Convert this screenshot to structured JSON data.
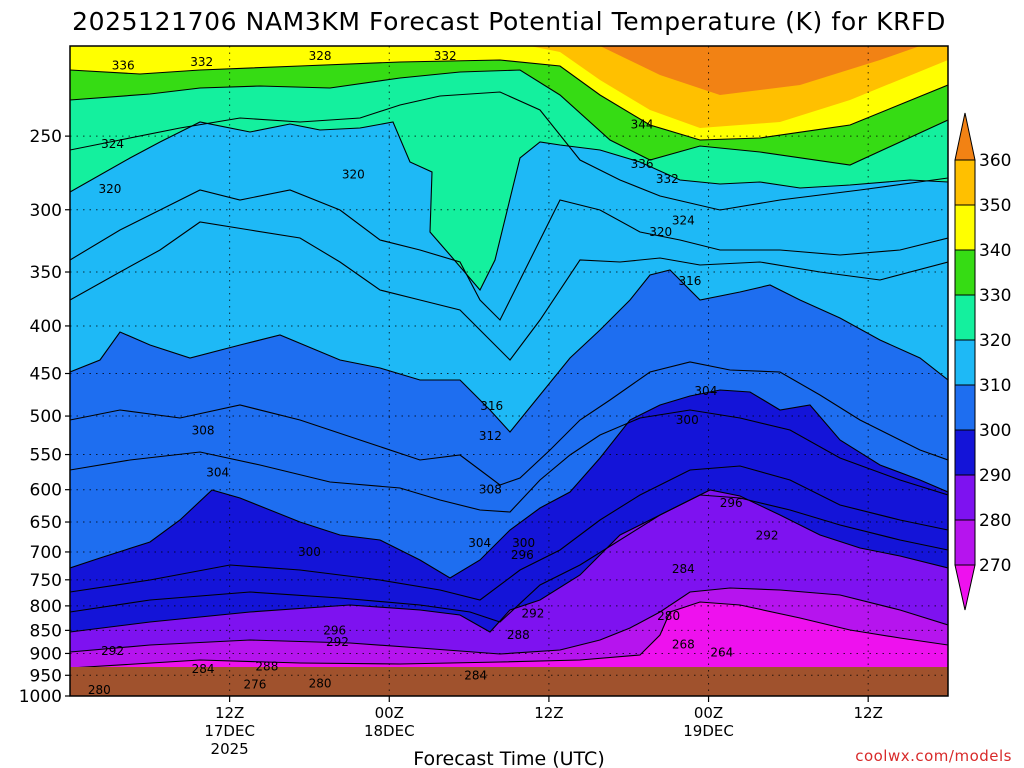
{
  "chart_data": {
    "type": "heatmap",
    "title": "2025121706 NAM3KM Forecast Potential Temperature (K) for KRFD",
    "xlabel": "Forecast Time (UTC)",
    "ylabel": "",
    "y_axis_scale": "log",
    "y_ticks": [
      "250",
      "300",
      "350",
      "400",
      "450",
      "500",
      "550",
      "600",
      "650",
      "700",
      "750",
      "800",
      "850",
      "900",
      "950",
      "1000"
    ],
    "y_range": [
      200,
      1000
    ],
    "x_ticks": [
      {
        "label": "12Z",
        "date": "17DEC",
        "year": "2025",
        "hour": 12
      },
      {
        "label": "00Z",
        "date": "18DEC",
        "year": "",
        "hour": 24
      },
      {
        "label": "12Z",
        "date": "",
        "year": "",
        "hour": 36
      },
      {
        "label": "00Z",
        "date": "19DEC",
        "year": "",
        "hour": 48
      },
      {
        "label": "12Z",
        "date": "",
        "year": "",
        "hour": 60
      }
    ],
    "x_range": [
      0,
      66
    ],
    "grid": true,
    "colorbar": {
      "ticks": [
        "270",
        "280",
        "290",
        "300",
        "310",
        "320",
        "330",
        "340",
        "350",
        "360"
      ],
      "colors": [
        "#ee11ee",
        "#b614ee",
        "#7e12f0",
        "#1414d8",
        "#1e6ef0",
        "#1eb9f6",
        "#14f09e",
        "#36dc14",
        "#ffff00",
        "#ffc000",
        "#f28214"
      ]
    },
    "contour_labels": [
      {
        "value": "336",
        "hour": 4.0,
        "p": 210
      },
      {
        "value": "332",
        "hour": 9.9,
        "p": 208
      },
      {
        "value": "328",
        "hour": 18.8,
        "p": 205
      },
      {
        "value": "332",
        "hour": 28.2,
        "p": 205
      },
      {
        "value": "324",
        "hour": 3.2,
        "p": 255
      },
      {
        "value": "320",
        "hour": 3.0,
        "p": 285
      },
      {
        "value": "320",
        "hour": 21.3,
        "p": 275
      },
      {
        "value": "344",
        "hour": 43.0,
        "p": 243
      },
      {
        "value": "336",
        "hour": 43.0,
        "p": 268
      },
      {
        "value": "332",
        "hour": 44.9,
        "p": 278
      },
      {
        "value": "320",
        "hour": 44.4,
        "p": 317
      },
      {
        "value": "324",
        "hour": 46.1,
        "p": 308
      },
      {
        "value": "316",
        "hour": 46.6,
        "p": 358
      },
      {
        "value": "304",
        "hour": 47.8,
        "p": 470
      },
      {
        "value": "316",
        "hour": 31.7,
        "p": 488
      },
      {
        "value": "312",
        "hour": 31.6,
        "p": 525
      },
      {
        "value": "308",
        "hour": 10.0,
        "p": 518
      },
      {
        "value": "304",
        "hour": 11.1,
        "p": 575
      },
      {
        "value": "300",
        "hour": 46.4,
        "p": 505
      },
      {
        "value": "308",
        "hour": 31.6,
        "p": 600
      },
      {
        "value": "296",
        "hour": 49.7,
        "p": 620
      },
      {
        "value": "292",
        "hour": 52.4,
        "p": 672
      },
      {
        "value": "304",
        "hour": 30.8,
        "p": 685
      },
      {
        "value": "300",
        "hour": 34.1,
        "p": 685
      },
      {
        "value": "296",
        "hour": 34.0,
        "p": 705
      },
      {
        "value": "300",
        "hour": 18.0,
        "p": 700
      },
      {
        "value": "284",
        "hour": 46.1,
        "p": 730
      },
      {
        "value": "292",
        "hour": 34.8,
        "p": 815
      },
      {
        "value": "280",
        "hour": 45.0,
        "p": 820
      },
      {
        "value": "288",
        "hour": 33.7,
        "p": 860
      },
      {
        "value": "296",
        "hour": 19.9,
        "p": 850
      },
      {
        "value": "292",
        "hour": 20.1,
        "p": 875
      },
      {
        "value": "268",
        "hour": 46.1,
        "p": 880
      },
      {
        "value": "264",
        "hour": 49.0,
        "p": 898
      },
      {
        "value": "292",
        "hour": 3.2,
        "p": 895
      },
      {
        "value": "284",
        "hour": 10.0,
        "p": 935
      },
      {
        "value": "288",
        "hour": 14.8,
        "p": 930
      },
      {
        "value": "284",
        "hour": 30.5,
        "p": 950
      },
      {
        "value": "276",
        "hour": 13.9,
        "p": 972
      },
      {
        "value": "280",
        "hour": 18.8,
        "p": 970
      },
      {
        "value": "280",
        "hour": 2.2,
        "p": 985
      }
    ]
  },
  "credit": "coolwx.com/models"
}
